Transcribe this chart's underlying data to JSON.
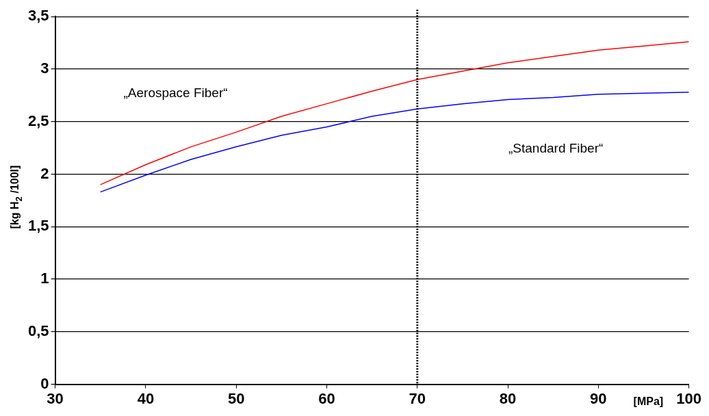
{
  "chart_data": {
    "type": "line",
    "ylabel": "[kg H$_{2}$ /100l]",
    "xlabel": "[MPa]",
    "x": [
      35,
      40,
      45,
      50,
      55,
      60,
      65,
      70,
      75,
      80,
      85,
      90,
      95,
      100
    ],
    "series": [
      {
        "color": "#ff0000",
        "values": [
          1.9,
          2.09,
          2.26,
          2.4,
          2.55,
          2.67,
          2.79,
          2.9,
          2.98,
          3.06,
          3.12,
          3.18,
          3.22,
          3.26
        ]
      },
      {
        "color": "#0000ff",
        "values": [
          1.83,
          1.99,
          2.14,
          2.26,
          2.37,
          2.45,
          2.55,
          2.62,
          2.67,
          2.71,
          2.73,
          2.76,
          2.77,
          2.78
        ]
      }
    ],
    "xlim": [
      30,
      100
    ],
    "xticks": [
      30,
      40,
      50,
      60,
      70,
      80,
      90,
      100
    ],
    "ylim": [
      0,
      3.5
    ],
    "yticks": [
      0,
      {
        "value": 0.5,
        "label": "0,5"
      },
      1,
      {
        "value": 1.5,
        "label": "1,5"
      },
      2,
      {
        "value": 2.5,
        "label": "2,5"
      },
      3,
      {
        "value": 3.5,
        "label": "3,5"
      }
    ],
    "ref_lines": [
      {
        "axis": "x",
        "value": 70,
        "color": "#000000",
        "line_style": "dotted"
      }
    ],
    "annotations": [
      "„Aerospace Fiber“",
      "„Standard Fiber“"
    ],
    "grid": "y",
    "legend": false,
    "marker": "none",
    "line_style": "solid"
  }
}
